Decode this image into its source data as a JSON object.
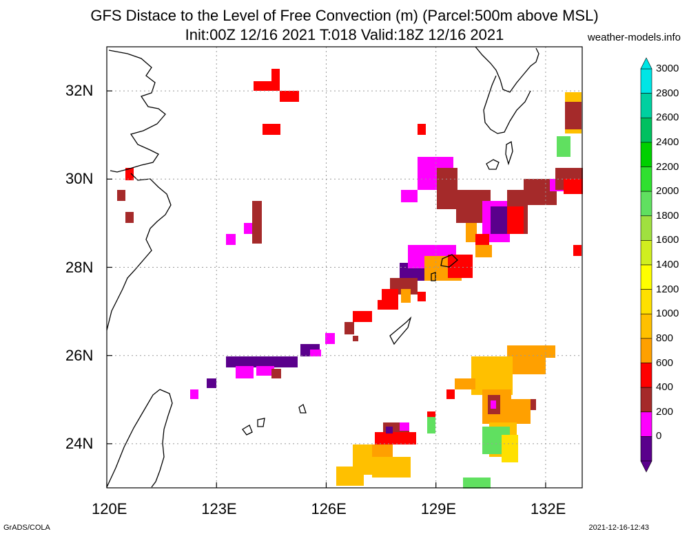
{
  "header": {
    "title": "GFS Distace to the Level of Free Convection (m) (Parcel:500m above MSL)",
    "subtitle": "Init:00Z 12/16 2021 T:018 Valid:18Z 12/16 2021",
    "site": "weather-models.info"
  },
  "footer": {
    "left": "GrADS/COLA",
    "right": "2021-12-16-12:43"
  },
  "axes": {
    "lon_labels": [
      "120E",
      "123E",
      "126E",
      "129E",
      "132E"
    ],
    "lat_labels": [
      "32N",
      "30N",
      "28N",
      "26N",
      "24N"
    ],
    "lon_range": [
      120,
      133
    ],
    "lat_range": [
      23,
      33
    ]
  },
  "colorbar": {
    "labels": [
      "3000",
      "2800",
      "2600",
      "2400",
      "2200",
      "2000",
      "1800",
      "1600",
      "1400",
      "1200",
      "1000",
      "800",
      "600",
      "400",
      "200",
      "0"
    ],
    "colors": [
      "#00e5e5",
      "#00d0a0",
      "#00c060",
      "#00d000",
      "#30e030",
      "#60e060",
      "#a0e040",
      "#d0ee20",
      "#ffff00",
      "#ffe000",
      "#ffc000",
      "#ffa000",
      "#ff0000",
      "#a52a2a",
      "#ff00ff",
      "#5a008c"
    ]
  },
  "chart_data": {
    "type": "heatmap",
    "title": "GFS Distace to the Level of Free Convection (m) (Parcel:500m above MSL)",
    "units": "m",
    "lon_ticks": [
      120,
      123,
      126,
      129,
      132
    ],
    "lat_ticks": [
      24,
      26,
      28,
      30,
      32
    ],
    "value_bins": [
      0,
      200,
      400,
      600,
      800,
      1000,
      1200,
      1400,
      1600,
      1800,
      2000,
      2200,
      2400,
      2600,
      2800,
      3000
    ]
  }
}
